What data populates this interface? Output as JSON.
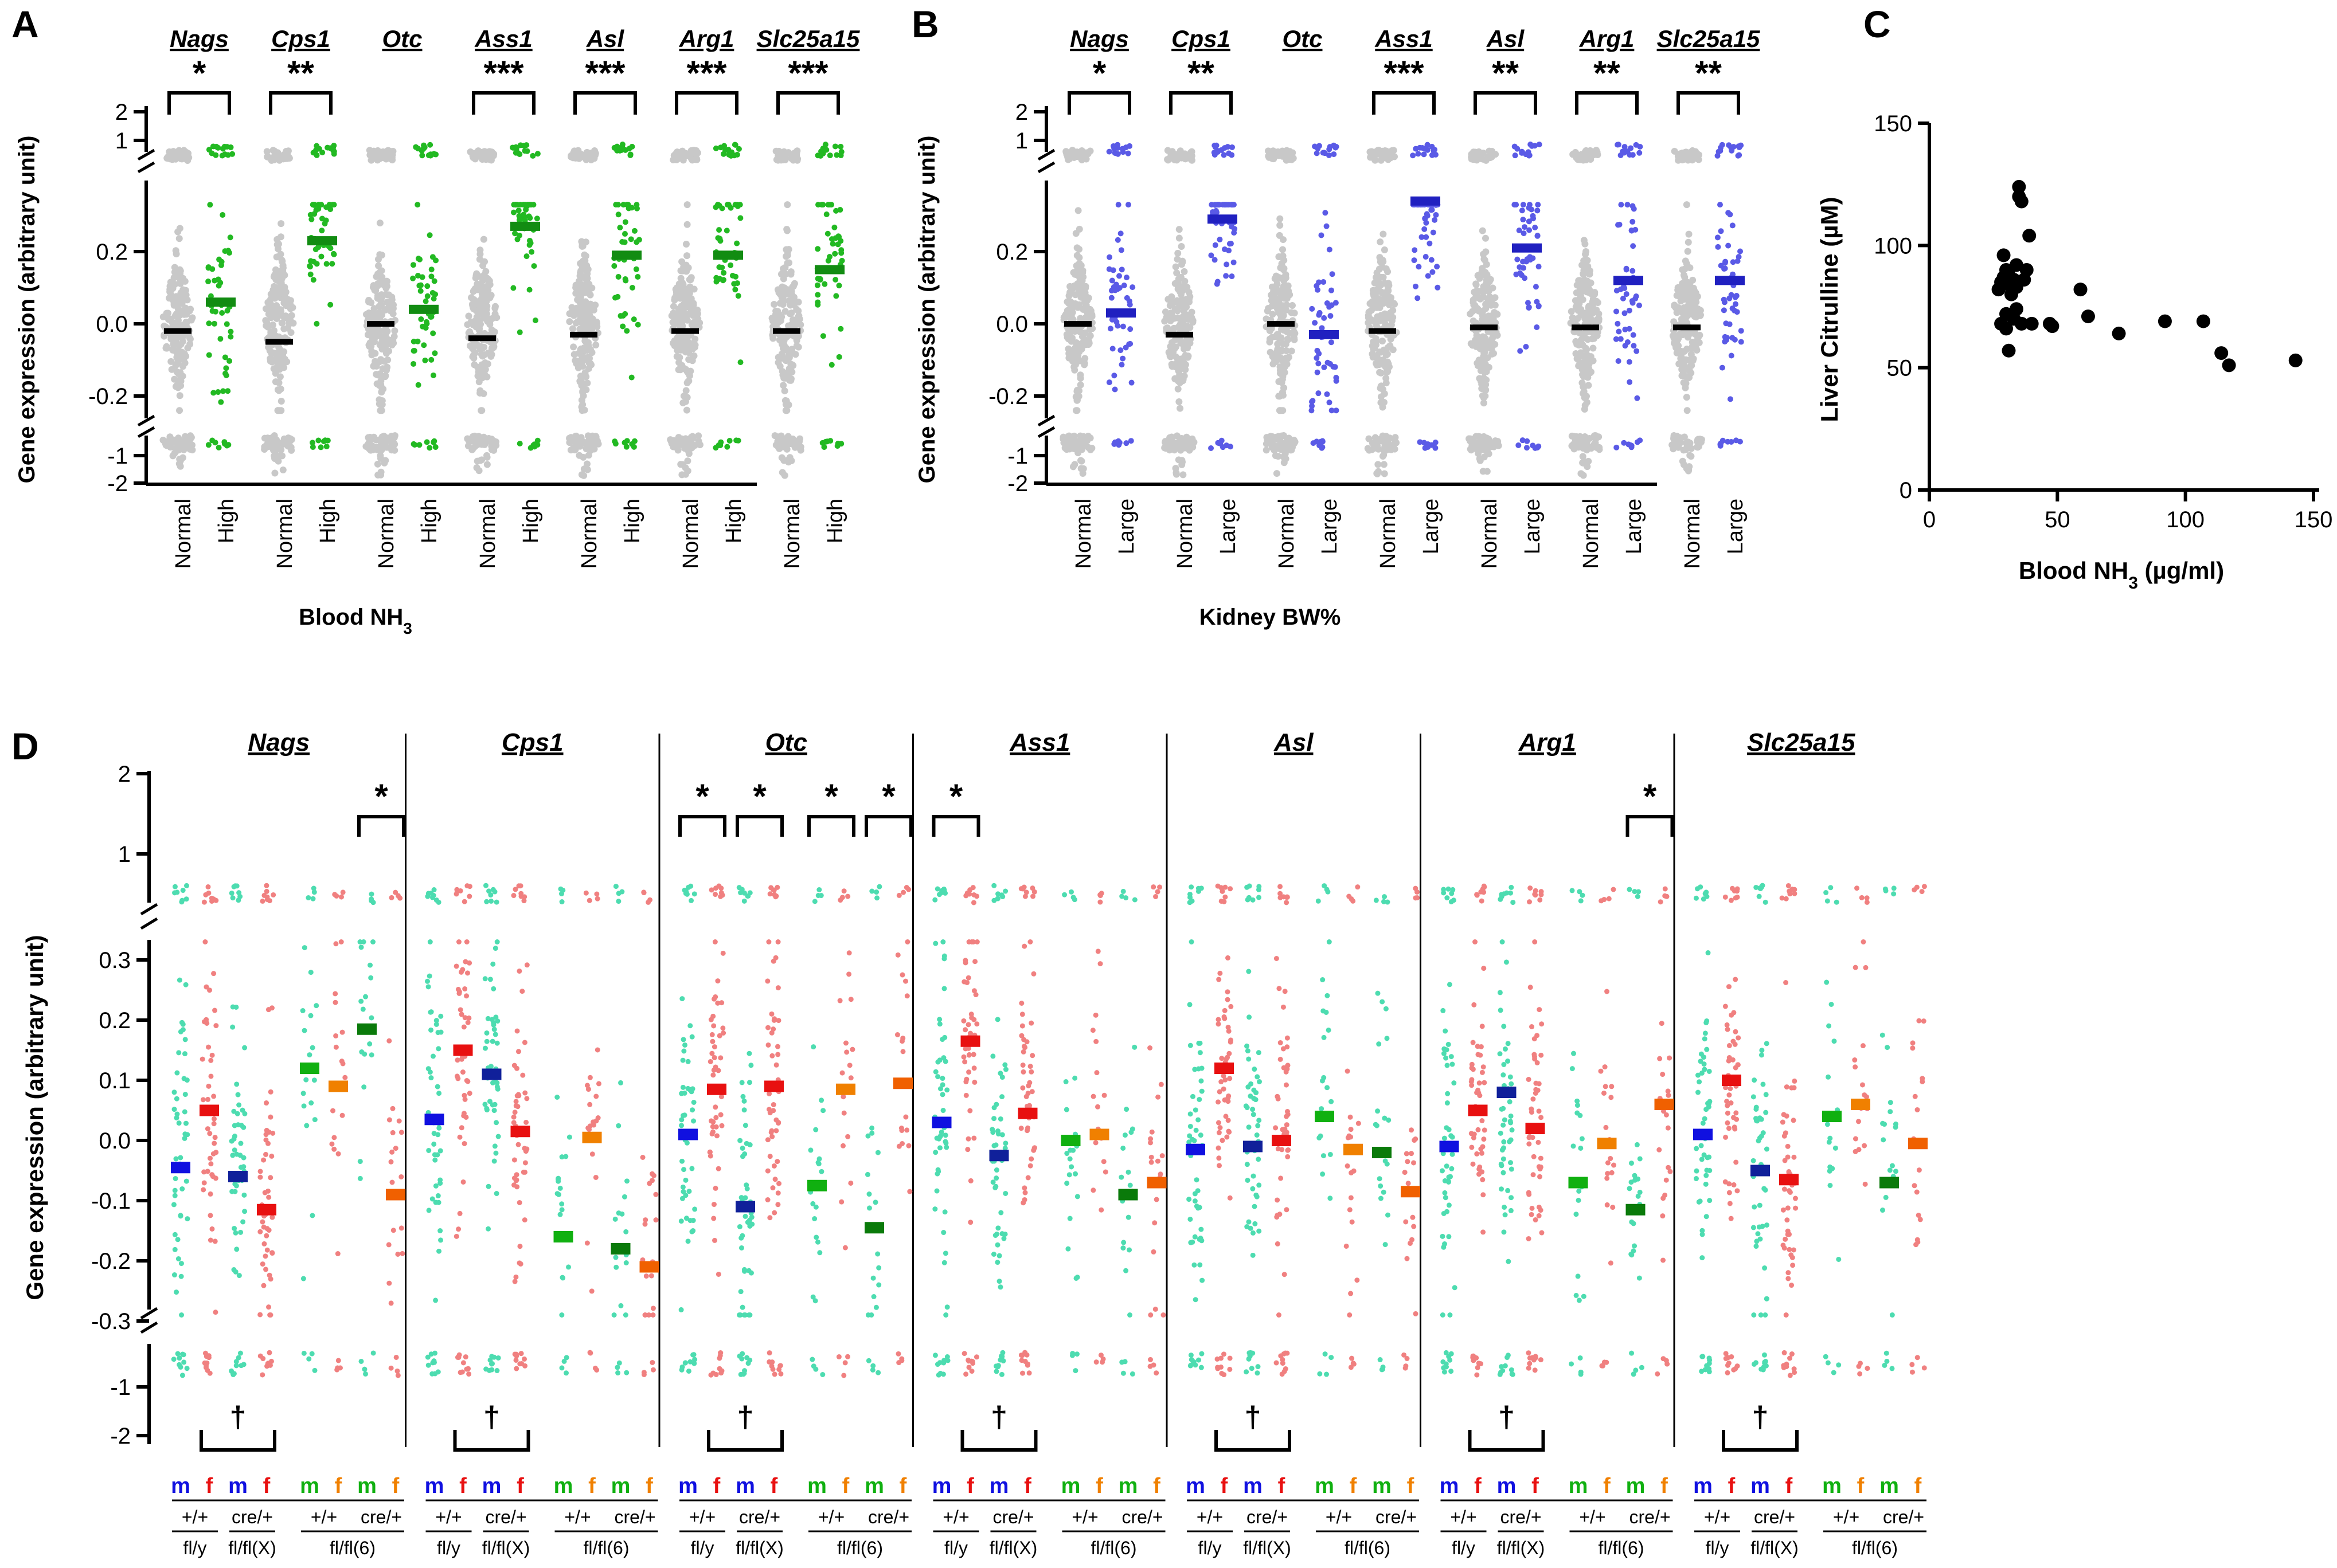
{
  "figure": {
    "panel_labels": [
      "A",
      "B",
      "C",
      "D"
    ],
    "colors": {
      "axis": "#000000",
      "normal_gray": "#c8c8c8",
      "high_green": "#22b922",
      "high_bar": "#128c12",
      "large_blue": "#5a5ae6",
      "large_bar": "#2020c0",
      "teal": "#4ddcb0",
      "salmon": "#f08080",
      "m_blue": "#1010e0",
      "f_red": "#e81010",
      "m_green": "#10b010",
      "f_orange": "#f08000",
      "m_darkgreen": "#0a7a0a",
      "f_darkorange": "#f06000",
      "scatter_black": "#000000"
    }
  },
  "chart_data": [
    {
      "panel": "A",
      "type": "scatter",
      "title": "",
      "ylabel": "Gene expression (arbitrary unit)",
      "xlabel": "Blood NH3",
      "groups": [
        "Normal",
        "High"
      ],
      "genes": [
        "Nags",
        "Cps1",
        "Otc",
        "Ass1",
        "Asl",
        "Arg1",
        "Slc25a15"
      ],
      "yaxis": {
        "segments": [
          {
            "ticks": [
              "-1",
              "-2"
            ]
          },
          {
            "range": [
              -0.2,
              0.35
            ],
            "ticks": [
              "-0.2",
              "0.0",
              "0.2"
            ]
          },
          {
            "ticks": [
              "2",
              "1"
            ]
          }
        ]
      },
      "means": {
        "Normal": [
          -0.02,
          -0.05,
          0.0,
          -0.04,
          -0.03,
          -0.02,
          -0.02
        ],
        "High": [
          0.06,
          0.23,
          0.04,
          0.27,
          0.19,
          0.19,
          0.15
        ]
      },
      "significance": [
        "*",
        "**",
        "",
        "***",
        "***",
        "***",
        "***"
      ]
    },
    {
      "panel": "B",
      "type": "scatter",
      "ylabel": "Gene expression (arbitrary unit)",
      "xlabel": "Kidney BW%",
      "groups": [
        "Normal",
        "Large"
      ],
      "genes": [
        "Nags",
        "Cps1",
        "Otc",
        "Ass1",
        "Asl",
        "Arg1",
        "Slc25a15"
      ],
      "yaxis": {
        "segments": [
          {
            "ticks": [
              "-1",
              "-2"
            ]
          },
          {
            "range": [
              -0.2,
              0.35
            ],
            "ticks": [
              "-0.2",
              "0.0",
              "0.2"
            ]
          },
          {
            "ticks": [
              "2",
              "1"
            ]
          }
        ]
      },
      "means": {
        "Normal": [
          0.0,
          -0.03,
          0.0,
          -0.02,
          -0.01,
          -0.01,
          -0.01
        ],
        "Large": [
          0.03,
          0.29,
          -0.03,
          0.34,
          0.21,
          0.12,
          0.12
        ]
      },
      "significance": [
        "*",
        "**",
        "",
        "***",
        "**",
        "**",
        "**"
      ]
    },
    {
      "panel": "C",
      "type": "scatter",
      "xlabel": "Blood NH3 (µg/ml)",
      "ylabel": "Liver Citrulline (µM)",
      "xlim": [
        0,
        150
      ],
      "ylim": [
        0,
        150
      ],
      "xticks": [
        "0",
        "50",
        "100",
        "150"
      ],
      "yticks": [
        "0",
        "50",
        "100",
        "150"
      ],
      "points": [
        [
          27,
          82
        ],
        [
          28,
          85
        ],
        [
          29,
          87
        ],
        [
          30,
          90
        ],
        [
          29,
          96
        ],
        [
          31,
          84
        ],
        [
          32,
          80
        ],
        [
          31,
          88
        ],
        [
          33,
          86
        ],
        [
          34,
          83
        ],
        [
          35,
          120
        ],
        [
          35,
          124
        ],
        [
          36,
          118
        ],
        [
          37,
          86
        ],
        [
          38,
          90
        ],
        [
          34,
          92
        ],
        [
          39,
          104
        ],
        [
          30,
          72
        ],
        [
          28,
          68
        ],
        [
          30,
          66
        ],
        [
          33,
          70
        ],
        [
          34,
          74
        ],
        [
          36,
          68
        ],
        [
          40,
          68
        ],
        [
          31,
          57
        ],
        [
          47,
          68
        ],
        [
          48,
          67
        ],
        [
          59,
          82
        ],
        [
          62,
          71
        ],
        [
          74,
          64
        ],
        [
          92,
          69
        ],
        [
          107,
          69
        ],
        [
          114,
          56
        ],
        [
          117,
          51
        ],
        [
          143,
          53
        ]
      ]
    },
    {
      "panel": "D",
      "type": "scatter",
      "ylabel": "Gene expression (arbitrary unit)",
      "genes": [
        "Nags",
        "Cps1",
        "Otc",
        "Ass1",
        "Asl",
        "Arg1",
        "Slc25a15"
      ],
      "yaxis": {
        "segments": [
          {
            "ticks": [
              "-1",
              "-2"
            ]
          },
          {
            "range": [
              -0.3,
              0.3
            ],
            "ticks": [
              "-0.3",
              "-0.2",
              "-0.1",
              "0.0",
              "0.1",
              "0.2",
              "0.3"
            ]
          },
          {
            "ticks": [
              "1",
              "2"
            ]
          }
        ]
      },
      "group_sexes": [
        "m",
        "f",
        "m",
        "f",
        "m",
        "f",
        "m",
        "f"
      ],
      "genotypes": [
        "+/+",
        "cre/+",
        "+/+",
        "cre/+"
      ],
      "strains": [
        "fl/y",
        "fl/fl(X)",
        "fl/fl(6)"
      ],
      "means": {
        "Nags": [
          -0.045,
          0.05,
          -0.06,
          -0.115,
          0.12,
          0.09,
          0.185,
          -0.09
        ],
        "Cps1": [
          0.035,
          0.15,
          0.11,
          0.015,
          -0.16,
          0.005,
          -0.18,
          -0.21
        ],
        "Otc": [
          0.01,
          0.085,
          -0.11,
          0.09,
          -0.075,
          0.085,
          -0.145,
          0.095
        ],
        "Ass1": [
          0.03,
          0.165,
          -0.025,
          0.045,
          0.0,
          0.01,
          -0.09,
          -0.07
        ],
        "Asl": [
          -0.015,
          0.12,
          -0.01,
          0.0,
          0.04,
          -0.015,
          -0.02,
          -0.085
        ],
        "Arg1": [
          -0.01,
          0.05,
          0.08,
          0.02,
          -0.07,
          -0.005,
          -0.115,
          0.06
        ],
        "Slc25a15": [
          0.01,
          0.1,
          -0.05,
          -0.065,
          0.04,
          0.06,
          -0.07,
          -0.005
        ]
      },
      "significance_top": [
        [
          "*",
          6,
          7
        ],
        [],
        [
          "*",
          0,
          1,
          "*",
          2,
          3,
          "*",
          4,
          5,
          "*",
          6,
          7
        ],
        [
          "*",
          0,
          1
        ],
        [],
        [
          "*",
          6,
          7
        ],
        []
      ],
      "dagger": "†"
    }
  ]
}
